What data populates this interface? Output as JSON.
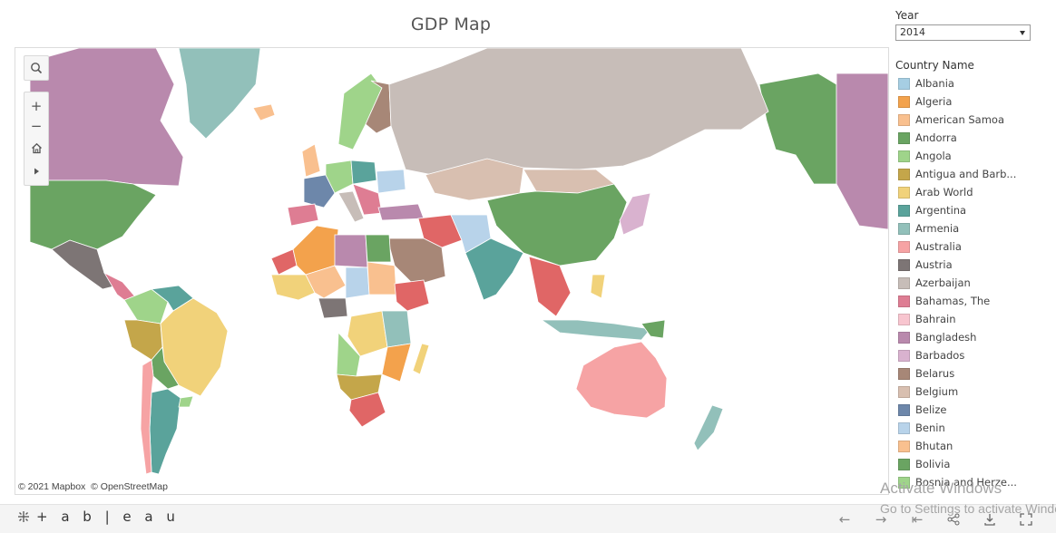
{
  "title": "GDP Map",
  "filter": {
    "label": "Year",
    "selected": "2014"
  },
  "legend": {
    "title": "Country Name",
    "items": [
      {
        "label": "Albania",
        "color": "#a6cee3"
      },
      {
        "label": "Algeria",
        "color": "#f3a24c"
      },
      {
        "label": "American Samoa",
        "color": "#f9c08f"
      },
      {
        "label": "Andorra",
        "color": "#6aa462"
      },
      {
        "label": "Angola",
        "color": "#9fd48a"
      },
      {
        "label": "Antigua and Barb...",
        "color": "#c4a64a"
      },
      {
        "label": "Arab World",
        "color": "#f1d27a"
      },
      {
        "label": "Argentina",
        "color": "#5aa39b"
      },
      {
        "label": "Armenia",
        "color": "#92c0ba"
      },
      {
        "label": "Australia",
        "color": "#f6a3a4"
      },
      {
        "label": "Austria",
        "color": "#7d7575"
      },
      {
        "label": "Azerbaijan",
        "color": "#c7bdb8"
      },
      {
        "label": "Bahamas, The",
        "color": "#de7d93"
      },
      {
        "label": "Bahrain",
        "color": "#f8c5cf"
      },
      {
        "label": "Bangladesh",
        "color": "#b989ad"
      },
      {
        "label": "Barbados",
        "color": "#d9b2cf"
      },
      {
        "label": "Belarus",
        "color": "#a78777"
      },
      {
        "label": "Belgium",
        "color": "#d8bfb0"
      },
      {
        "label": "Belize",
        "color": "#6d87aa"
      },
      {
        "label": "Benin",
        "color": "#b8d3ea"
      },
      {
        "label": "Bhutan",
        "color": "#f9c08f"
      },
      {
        "label": "Bolivia",
        "color": "#6aa462"
      },
      {
        "label": "Bosnia and Herze...",
        "color": "#9fd48a"
      }
    ]
  },
  "map": {
    "attribution_mapbox": "© 2021 Mapbox",
    "attribution_osm": "© OpenStreetMap",
    "land_default": "#e8e8e8",
    "border_color": "#ffffff"
  },
  "footer": {
    "brand": "+ a b | e a u"
  },
  "watermark": {
    "line1": "Activate Windows",
    "line2": "Go to Settings to activate Windows."
  }
}
